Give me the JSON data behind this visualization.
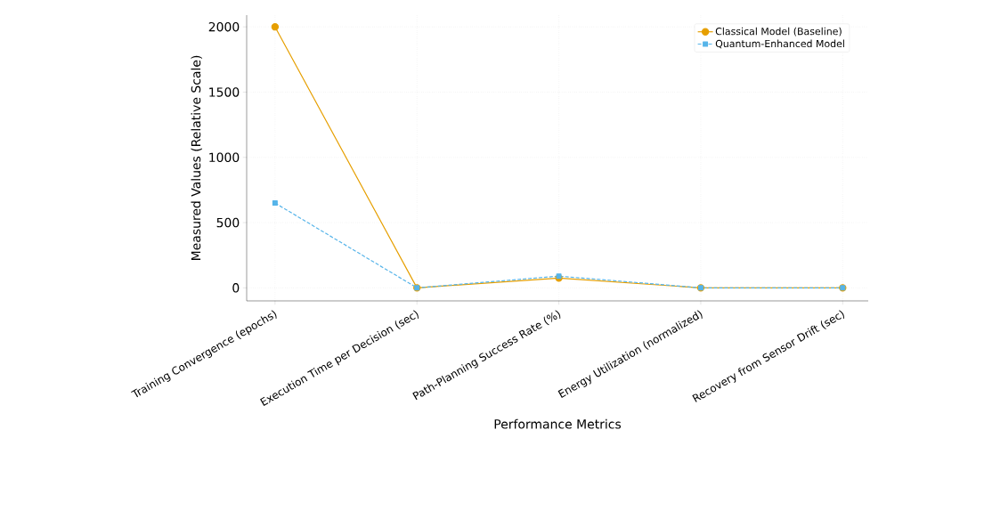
{
  "chart_data": {
    "type": "line",
    "xlabel": "Performance Metrics",
    "ylabel": "Measured Values (Relative Scale)",
    "categories": [
      "Training Convergence (epochs)",
      "Execution Time per Decision (sec)",
      "Path-Planning Success Rate (%)",
      "Energy Utilization (normalized)",
      "Recovery from Sensor Drift (sec)"
    ],
    "series": [
      {
        "name": "Classical Model (Baseline)",
        "color": "#e69f00",
        "marker": "circle",
        "line_style": "solid",
        "values": [
          2000,
          0,
          75,
          0,
          0
        ]
      },
      {
        "name": "Quantum-Enhanced Model",
        "color": "#56b4e9",
        "marker": "square",
        "line_style": "dashed",
        "values": [
          650,
          0,
          90,
          0,
          0
        ]
      }
    ],
    "ylim": [
      -100,
      2090
    ],
    "yticks": [
      0,
      500,
      1000,
      1500,
      2000
    ],
    "grid": true,
    "legend": "top right"
  }
}
